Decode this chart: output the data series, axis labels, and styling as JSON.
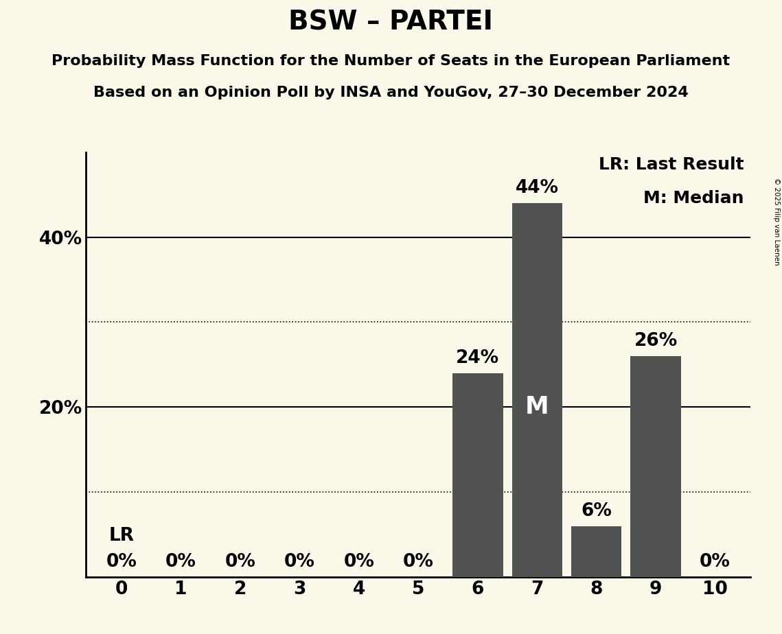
{
  "title": "BSW – PARTEI",
  "subtitle1": "Probability Mass Function for the Number of Seats in the European Parliament",
  "subtitle2": "Based on an Opinion Poll by INSA and YouGov, 27–30 December 2024",
  "copyright": "© 2025 Filip van Laenen",
  "categories": [
    0,
    1,
    2,
    3,
    4,
    5,
    6,
    7,
    8,
    9,
    10
  ],
  "values": [
    0,
    0,
    0,
    0,
    0,
    0,
    24,
    44,
    6,
    26,
    0
  ],
  "bar_color": "#525252",
  "background_color": "#faf8e8",
  "ylim": [
    0,
    50
  ],
  "solid_yticks": [
    20,
    40
  ],
  "dotted_yticks": [
    10,
    30
  ],
  "median_seat": 7,
  "lr_seat": 0,
  "legend_lr": "LR: Last Result",
  "legend_m": "M: Median",
  "title_fontsize": 28,
  "subtitle_fontsize": 16,
  "tick_fontsize": 19,
  "bar_label_fontsize": 19,
  "annotation_fontsize": 18
}
